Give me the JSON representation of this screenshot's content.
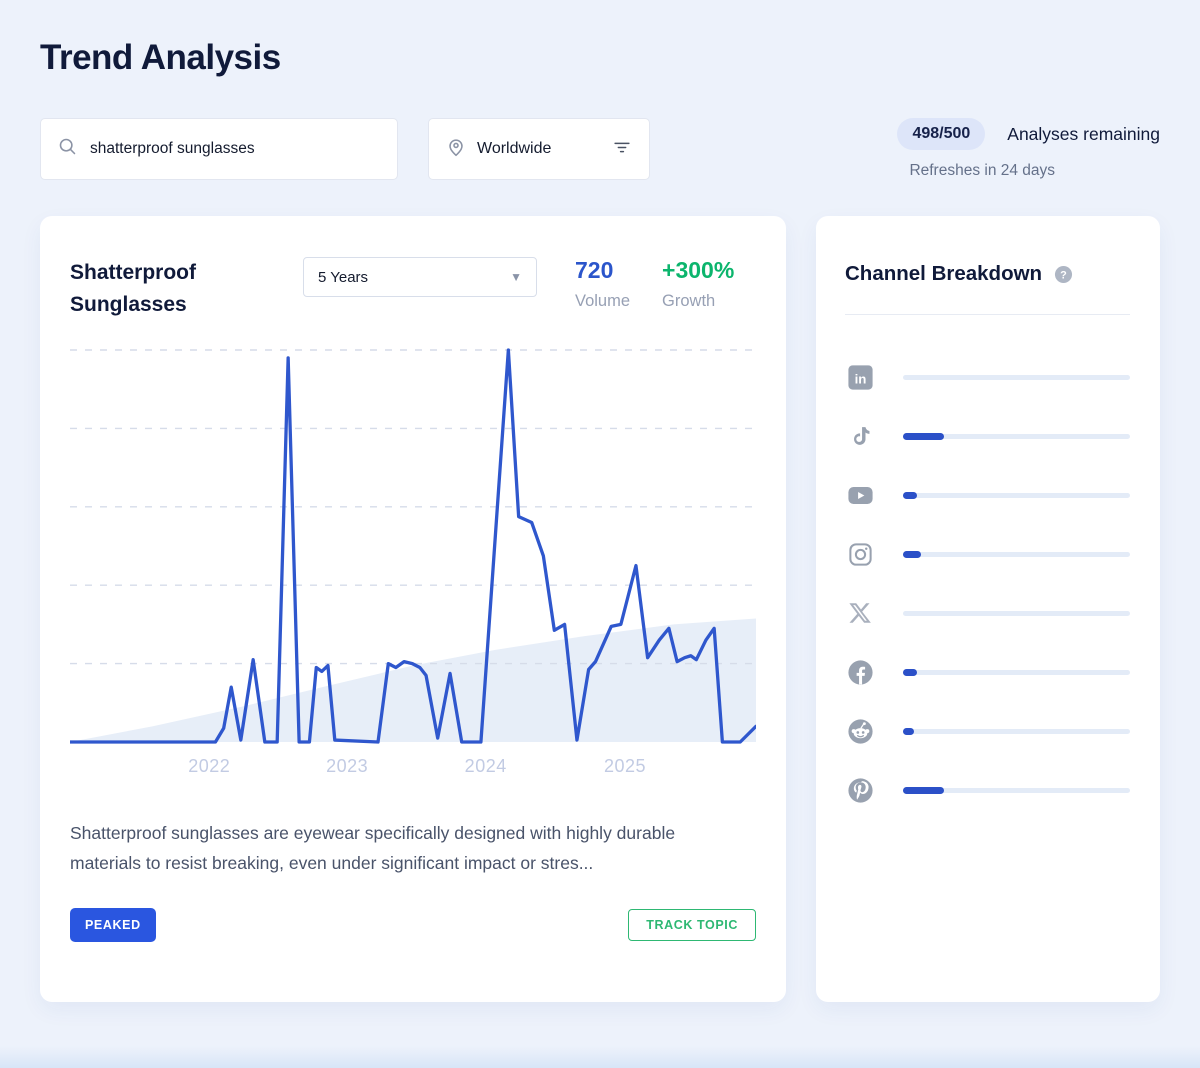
{
  "page": {
    "title": "Trend Analysis"
  },
  "search": {
    "value": "shatterproof sunglasses"
  },
  "location": {
    "value": "Worldwide"
  },
  "quota": {
    "badge": "498/500",
    "label": "Analyses remaining",
    "refresh": "Refreshes in 24 days"
  },
  "trend_card": {
    "title": "Shatterproof Sunglasses",
    "timeframe": "5 Years",
    "volume_value": "720",
    "volume_label": "Volume",
    "growth_value": "+300%",
    "growth_label": "Growth",
    "description": "Shatterproof sunglasses are eyewear specifically designed with highly durable materials to resist breaking, even under significant impact or stres...",
    "status_badge": "PEAKED",
    "track_button": "TRACK TOPIC"
  },
  "chart_data": {
    "type": "line",
    "title": "Shatterproof Sunglasses — 5 year search interest",
    "x_tick_labels": [
      "2022",
      "2023",
      "2024",
      "2025"
    ],
    "x_tick_positions_pct": [
      20.3,
      40.4,
      60.6,
      80.9
    ],
    "ylim": [
      0,
      100
    ],
    "grid_values": [
      20,
      40,
      60,
      80,
      100
    ],
    "grid_style": "dashed",
    "legend": "none",
    "series": [
      {
        "name": "search-interest",
        "color": "#2f57cd",
        "points": [
          [
            0,
            0
          ],
          [
            21.2,
            0
          ],
          [
            22.4,
            3.5
          ],
          [
            23.5,
            14
          ],
          [
            24.9,
            0.5
          ],
          [
            26.7,
            21
          ],
          [
            28.4,
            0
          ],
          [
            30.2,
            0
          ],
          [
            31.8,
            98
          ],
          [
            33.4,
            0
          ],
          [
            34.9,
            0
          ],
          [
            35.9,
            19
          ],
          [
            36.7,
            18
          ],
          [
            37.6,
            19.5
          ],
          [
            38.6,
            0.5
          ],
          [
            44.9,
            0
          ],
          [
            46.4,
            20
          ],
          [
            47.5,
            19
          ],
          [
            48.7,
            20.5
          ],
          [
            49.9,
            20
          ],
          [
            51.0,
            19
          ],
          [
            51.9,
            17
          ],
          [
            53.6,
            1
          ],
          [
            55.4,
            17.5
          ],
          [
            57.1,
            0
          ],
          [
            59.9,
            0
          ],
          [
            63.9,
            100
          ],
          [
            65.4,
            57.5
          ],
          [
            67.3,
            56
          ],
          [
            69.0,
            47.5
          ],
          [
            70.6,
            28.5
          ],
          [
            72.1,
            30
          ],
          [
            73.9,
            0.5
          ],
          [
            75.6,
            18.5
          ],
          [
            76.6,
            20.5
          ],
          [
            78.9,
            29.5
          ],
          [
            80.3,
            30
          ],
          [
            82.5,
            45
          ],
          [
            84.2,
            21.5
          ],
          [
            85.9,
            26
          ],
          [
            87.3,
            29
          ],
          [
            88.5,
            20.5
          ],
          [
            89.6,
            21.5
          ],
          [
            90.5,
            22
          ],
          [
            91.3,
            21
          ],
          [
            92.7,
            26
          ],
          [
            93.9,
            29
          ],
          [
            95.1,
            0
          ],
          [
            97.7,
            0
          ],
          [
            100,
            4
          ]
        ]
      }
    ],
    "background_area": {
      "name": "long-term-trend",
      "color": "#e7eef8",
      "points": [
        [
          0,
          0
        ],
        [
          12,
          4
        ],
        [
          25,
          9
        ],
        [
          38,
          14.5
        ],
        [
          50,
          19.5
        ],
        [
          62,
          23.5
        ],
        [
          75,
          27
        ],
        [
          88,
          30
        ],
        [
          100,
          31.5
        ]
      ]
    }
  },
  "channel_breakdown": {
    "title": "Channel Breakdown",
    "channels": [
      {
        "name": "LinkedIn",
        "value_pct": 0
      },
      {
        "name": "TikTok",
        "value_pct": 18
      },
      {
        "name": "YouTube",
        "value_pct": 6
      },
      {
        "name": "Instagram",
        "value_pct": 8
      },
      {
        "name": "X",
        "value_pct": 0
      },
      {
        "name": "Facebook",
        "value_pct": 6
      },
      {
        "name": "Reddit",
        "value_pct": 5
      },
      {
        "name": "Pinterest",
        "value_pct": 18
      }
    ]
  },
  "colors": {
    "page_bg": "#edf2fb",
    "accent_blue": "#2b55cb",
    "growth_green": "#0cb56d",
    "track_green": "#2eb873",
    "line_blue": "#2f57cd",
    "bar_fill_blue": "#2b50c8",
    "bar_track": "#e3ebf7",
    "tick_label": "#c2cbe3"
  }
}
